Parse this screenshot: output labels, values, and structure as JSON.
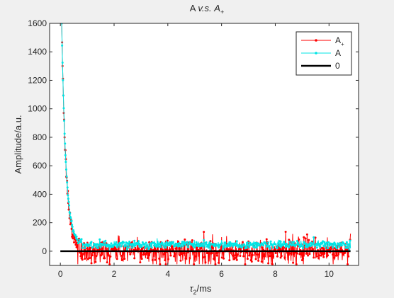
{
  "figure": {
    "background": "#f0f0f0",
    "axes_background": "#ffffff"
  },
  "chart_data": {
    "type": "line",
    "title_main": "A ",
    "title_italic_1": "v.s.",
    "title_italic_2": "A",
    "title_subscript": "+",
    "xlabel_symbol": "τ",
    "xlabel_subscript": "2",
    "xlabel_unit": "/ms",
    "ylabel": "Amplitude/a.u.",
    "xlim": [
      -0.4,
      11.1
    ],
    "ylim": [
      -100,
      1600
    ],
    "xticks": [
      0,
      2,
      4,
      6,
      8,
      10
    ],
    "yticks": [
      0,
      200,
      400,
      600,
      800,
      1000,
      1200,
      1400,
      1600
    ],
    "xtick_labels": [
      "0",
      "2",
      "4",
      "6",
      "8",
      "10"
    ],
    "ytick_labels": [
      "0",
      "200",
      "400",
      "600",
      "800",
      "1000",
      "1200",
      "1400",
      "1600"
    ],
    "legend_position": "top-right",
    "grid": false,
    "series": [
      {
        "name": "A",
        "name_subscript": "+",
        "color": "#ff0000",
        "marker": "dot",
        "description_of_values": "decay 1600·exp(-τ/0.16), then noisy baseline around 0 (range ≈ -90 to 160)",
        "x_start": 0.05,
        "x_end": 10.8,
        "decay_amplitude": 1600,
        "decay_tau": 0.16,
        "baseline": 0,
        "noise": 45,
        "key_points": [
          [
            0.05,
            1600
          ],
          [
            0.1,
            1510
          ],
          [
            0.2,
            960
          ],
          [
            0.3,
            420
          ],
          [
            0.5,
            170
          ],
          [
            1.0,
            40
          ],
          [
            4.0,
            0
          ],
          [
            8.0,
            0
          ],
          [
            10.8,
            -80
          ]
        ]
      },
      {
        "name": "A",
        "color": "#00e5e5",
        "marker": "dot",
        "description_of_values": "decay 1600·exp(-τ/0.16), then noisy baseline around 45 (range ≈ 15 to 80)",
        "x_start": 0.05,
        "x_end": 10.8,
        "decay_amplitude": 1600,
        "decay_tau": 0.16,
        "baseline": 45,
        "noise": 14,
        "key_points": [
          [
            0.05,
            1600
          ],
          [
            0.1,
            1510
          ],
          [
            0.2,
            960
          ],
          [
            0.3,
            430
          ],
          [
            0.5,
            190
          ],
          [
            1.0,
            70
          ],
          [
            4.0,
            45
          ],
          [
            8.0,
            45
          ],
          [
            10.8,
            45
          ]
        ]
      },
      {
        "name": "0",
        "color": "#000000",
        "marker": "none",
        "x": [
          0.0,
          10.8
        ],
        "values": [
          0,
          0
        ]
      }
    ]
  }
}
